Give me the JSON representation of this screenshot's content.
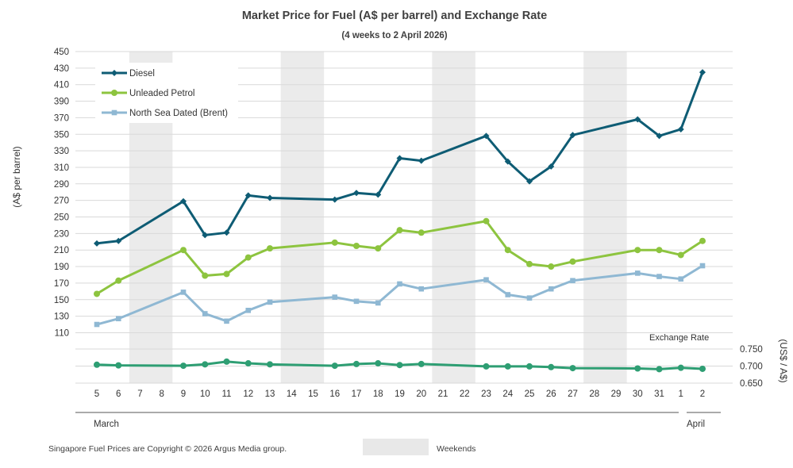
{
  "chart_data": {
    "type": "line",
    "title": "Market Price for Fuel (A$  per barrel) and Exchange  Rate",
    "subtitle": "(4 weeks to 2  April  2026)",
    "ylabel": "(A$ per barrel)",
    "y2label": "(US$ / A$)",
    "ylim": [
      110,
      450
    ],
    "y_ticks": [
      110,
      130,
      150,
      170,
      190,
      210,
      230,
      250,
      270,
      290,
      310,
      330,
      350,
      370,
      390,
      410,
      430,
      450
    ],
    "y2lim": [
      0.65,
      0.75
    ],
    "y2_ticks": [
      "0.750",
      "0.700",
      "0.650"
    ],
    "x_labels": [
      "5",
      "6",
      "7",
      "8",
      "9",
      "10",
      "11",
      "12",
      "13",
      "14",
      "15",
      "16",
      "17",
      "18",
      "19",
      "20",
      "21",
      "22",
      "23",
      "24",
      "25",
      "26",
      "27",
      "28",
      "29",
      "30",
      "31",
      "1",
      "2"
    ],
    "month_labels": [
      "March",
      "April"
    ],
    "weekend_label": "Weekends",
    "weekend_bands": [
      [
        2,
        3
      ],
      [
        9,
        10
      ],
      [
        16,
        17
      ],
      [
        23,
        24
      ]
    ],
    "exchange_rate_label": "Exchange Rate",
    "copyright": "Singapore Fuel Prices are Copyright © 2026 Argus Media group.",
    "series": [
      {
        "name": "Diesel",
        "color": "#0e5c74",
        "marker": "diamond",
        "points": [
          [
            0,
            218
          ],
          [
            1,
            221
          ],
          [
            4,
            269
          ],
          [
            5,
            228
          ],
          [
            6,
            231
          ],
          [
            7,
            276
          ],
          [
            8,
            273
          ],
          [
            11,
            271
          ],
          [
            12,
            279
          ],
          [
            13,
            277
          ],
          [
            14,
            321
          ],
          [
            15,
            318
          ],
          [
            18,
            348
          ],
          [
            19,
            317
          ],
          [
            20,
            293
          ],
          [
            21,
            311
          ],
          [
            22,
            349
          ],
          [
            25,
            368
          ],
          [
            26,
            348
          ],
          [
            27,
            356
          ],
          [
            28,
            425
          ]
        ]
      },
      {
        "name": "Unleaded Petrol",
        "color": "#8dc43f",
        "marker": "circle",
        "points": [
          [
            0,
            157
          ],
          [
            1,
            173
          ],
          [
            4,
            210
          ],
          [
            5,
            179
          ],
          [
            6,
            181
          ],
          [
            7,
            201
          ],
          [
            8,
            212
          ],
          [
            11,
            219
          ],
          [
            12,
            215
          ],
          [
            13,
            212
          ],
          [
            14,
            234
          ],
          [
            15,
            231
          ],
          [
            18,
            245
          ],
          [
            19,
            210
          ],
          [
            20,
            193
          ],
          [
            21,
            190
          ],
          [
            22,
            196
          ],
          [
            25,
            210
          ],
          [
            26,
            210
          ],
          [
            27,
            204
          ],
          [
            28,
            221
          ]
        ]
      },
      {
        "name": "North Sea Dated (Brent)",
        "color": "#8fb8d3",
        "marker": "square",
        "points": [
          [
            0,
            120
          ],
          [
            1,
            127
          ],
          [
            4,
            159
          ],
          [
            5,
            133
          ],
          [
            6,
            124
          ],
          [
            7,
            137
          ],
          [
            8,
            147
          ],
          [
            11,
            153
          ],
          [
            12,
            148
          ],
          [
            13,
            146
          ],
          [
            14,
            169
          ],
          [
            15,
            163
          ],
          [
            18,
            174
          ],
          [
            19,
            156
          ],
          [
            20,
            152
          ],
          [
            21,
            163
          ],
          [
            22,
            173
          ],
          [
            25,
            182
          ],
          [
            26,
            178
          ],
          [
            27,
            175
          ],
          [
            28,
            191
          ]
        ]
      },
      {
        "name": "Exchange Rate",
        "color": "#2e9e73",
        "marker": "circle",
        "axis": "secondary",
        "points": [
          [
            0,
            0.704
          ],
          [
            1,
            0.702
          ],
          [
            4,
            0.701
          ],
          [
            5,
            0.705
          ],
          [
            6,
            0.713
          ],
          [
            7,
            0.708
          ],
          [
            8,
            0.705
          ],
          [
            11,
            0.701
          ],
          [
            12,
            0.706
          ],
          [
            13,
            0.708
          ],
          [
            14,
            0.703
          ],
          [
            15,
            0.706
          ],
          [
            18,
            0.699
          ],
          [
            19,
            0.699
          ],
          [
            20,
            0.699
          ],
          [
            21,
            0.697
          ],
          [
            22,
            0.694
          ],
          [
            25,
            0.693
          ],
          [
            26,
            0.691
          ],
          [
            27,
            0.695
          ],
          [
            28,
            0.692
          ]
        ]
      }
    ],
    "legend": [
      "Diesel",
      "Unleaded Petrol",
      "North Sea Dated (Brent)"
    ],
    "legend_position": "top-left",
    "grid": true
  }
}
